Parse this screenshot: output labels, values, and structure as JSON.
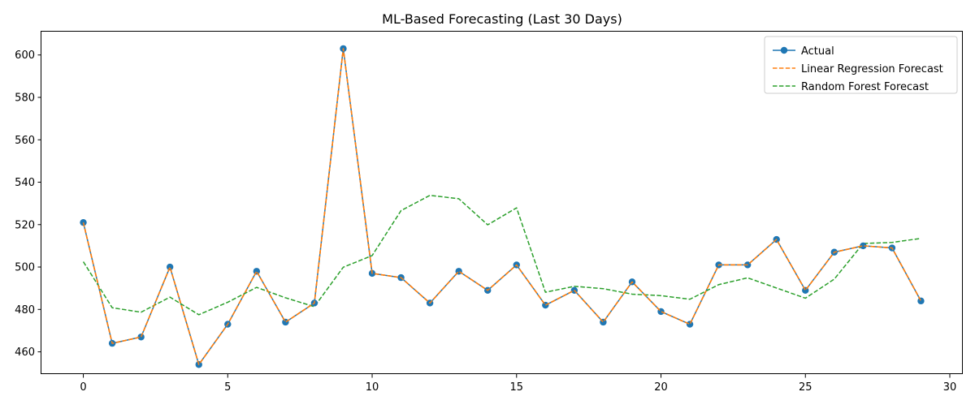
{
  "chart_data": {
    "type": "line",
    "title": "ML-Based Forecasting (Last 30 Days)",
    "xlabel": "",
    "ylabel": "",
    "xlim": [
      -1.45,
      30.45
    ],
    "ylim": [
      449.5,
      611
    ],
    "xticks": [
      0,
      5,
      10,
      15,
      20,
      25,
      30
    ],
    "yticks": [
      460,
      480,
      500,
      520,
      540,
      560,
      580,
      600
    ],
    "grid": false,
    "legend_position": "top-right",
    "x": [
      0,
      1,
      2,
      3,
      4,
      5,
      6,
      7,
      8,
      9,
      10,
      11,
      12,
      13,
      14,
      15,
      16,
      17,
      18,
      19,
      20,
      21,
      22,
      23,
      24,
      25,
      26,
      27,
      28,
      29
    ],
    "series": [
      {
        "name": "Actual",
        "color": "#1f77b4",
        "style": "solid",
        "marker": "circle",
        "values": [
          521,
          464,
          467,
          500,
          454,
          473,
          498,
          474,
          483,
          603,
          497,
          495,
          483,
          498,
          489,
          501,
          482,
          489,
          474,
          493,
          479,
          473,
          501,
          501,
          513,
          489,
          507,
          510,
          509,
          484
        ]
      },
      {
        "name": "Linear Regression Forecast",
        "color": "#ff7f0e",
        "style": "dashed",
        "marker": "none",
        "values": [
          521,
          464,
          467,
          500,
          454,
          473,
          498,
          474,
          483,
          603,
          497,
          495,
          483,
          498,
          489,
          501,
          482,
          489,
          474,
          493,
          479,
          473,
          501,
          501,
          513,
          489,
          507,
          510,
          509,
          484
        ]
      },
      {
        "name": "Random Forest Forecast",
        "color": "#2ca02c",
        "style": "dashed",
        "marker": "none",
        "values": [
          502.5,
          480.8,
          478.7,
          485.8,
          477.5,
          483.4,
          490.4,
          485.5,
          481.3,
          499.9,
          505.4,
          526.6,
          533.8,
          532.2,
          519.9,
          527.9,
          488.1,
          490.9,
          489.8,
          487.2,
          486.5,
          484.8,
          491.7,
          494.9,
          490.1,
          485.3,
          494.3,
          511.1,
          511.6,
          513.5
        ]
      }
    ]
  }
}
